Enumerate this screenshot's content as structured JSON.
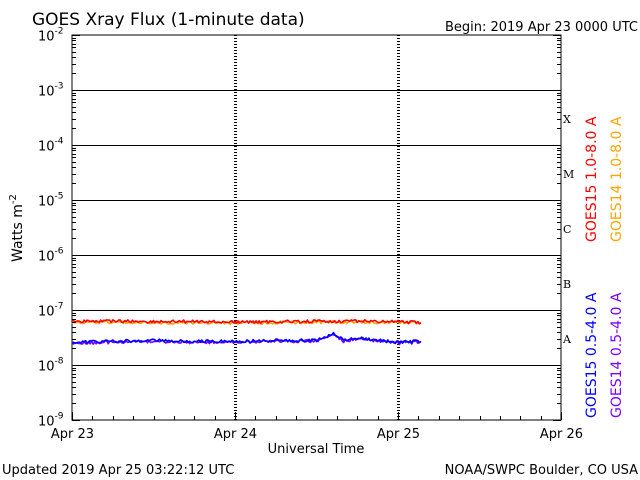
{
  "header": {
    "title": "GOES Xray Flux (1-minute data)",
    "begin": "Begin:  2019 Apr 23 0000 UTC"
  },
  "footer": {
    "updated": "Updated 2019 Apr 25 03:22:12 UTC",
    "source": "NOAA/SWPC Boulder, CO USA"
  },
  "colors": {
    "goes15_long": "#ff0000",
    "goes14_long": "#ffa500",
    "goes15_short": "#0000ff",
    "goes14_short": "#7b00ff"
  },
  "chart_data": {
    "type": "line",
    "title": "GOES Xray Flux (1-minute data)",
    "xlabel": "Universal Time",
    "ylabel": "Watts m",
    "ylabel_sup": "-2",
    "yscale": "log",
    "ylim": [
      1e-09,
      0.01
    ],
    "y_ticks": [
      {
        "value": 0.01,
        "base": "10",
        "exp": "-2"
      },
      {
        "value": 0.001,
        "base": "10",
        "exp": "-3"
      },
      {
        "value": 0.0001,
        "base": "10",
        "exp": "-4"
      },
      {
        "value": 1e-05,
        "base": "10",
        "exp": "-5"
      },
      {
        "value": 1e-06,
        "base": "10",
        "exp": "-6"
      },
      {
        "value": 1e-07,
        "base": "10",
        "exp": "-7"
      },
      {
        "value": 1e-08,
        "base": "10",
        "exp": "-8"
      },
      {
        "value": 1e-09,
        "base": "10",
        "exp": "-9"
      }
    ],
    "xlim": [
      "2019-04-23 00:00",
      "2019-04-26 00:00"
    ],
    "x_ticks": [
      {
        "value": "2019-04-23 00:00",
        "label": "Apr 23"
      },
      {
        "value": "2019-04-24 00:00",
        "label": "Apr 24"
      },
      {
        "value": "2019-04-25 00:00",
        "label": "Apr 25"
      },
      {
        "value": "2019-04-26 00:00",
        "label": "Apr 26"
      }
    ],
    "flare_classes": [
      {
        "label": "X",
        "value": 0.0003
      },
      {
        "label": "M",
        "value": 3e-05
      },
      {
        "label": "C",
        "value": 3e-06
      },
      {
        "label": "B",
        "value": 3e-07
      },
      {
        "label": "A",
        "value": 3e-08
      }
    ],
    "gridlines_y": [
      0.001,
      0.0001,
      1e-05,
      1e-06,
      1e-07,
      1e-08
    ],
    "grid": true,
    "legend_position": "right",
    "series": [
      {
        "name": "GOES15 1.0-8.0 A",
        "color": "#ff0000",
        "x": [
          "2019-04-23 00:00",
          "2019-04-23 06:00",
          "2019-04-23 12:00",
          "2019-04-23 18:00",
          "2019-04-24 00:00",
          "2019-04-24 06:00",
          "2019-04-24 12:00",
          "2019-04-24 18:00",
          "2019-04-25 00:00",
          "2019-04-25 03:22"
        ],
        "values": [
          6.2e-08,
          6.3e-08,
          6.1e-08,
          6.2e-08,
          6e-08,
          6.1e-08,
          6.2e-08,
          6.3e-08,
          6.1e-08,
          5.9e-08
        ]
      },
      {
        "name": "GOES14 1.0-8.0 A",
        "color": "#ffa500",
        "x": [
          "2019-04-23 00:00",
          "2019-04-23 06:00",
          "2019-04-23 12:00",
          "2019-04-23 18:00",
          "2019-04-24 00:00",
          "2019-04-24 06:00",
          "2019-04-24 12:00",
          "2019-04-24 18:00",
          "2019-04-25 00:00",
          "2019-04-25 03:22"
        ],
        "values": [
          5.9e-08,
          6e-08,
          5.8e-08,
          5.9e-08,
          5.8e-08,
          5.9e-08,
          6e-08,
          6e-08,
          5.9e-08,
          5.8e-08
        ]
      },
      {
        "name": "GOES15 0.5-4.0 A",
        "color": "#0000ff",
        "x": [
          "2019-04-23 00:00",
          "2019-04-23 06:00",
          "2019-04-23 12:00",
          "2019-04-23 18:00",
          "2019-04-24 00:00",
          "2019-04-24 06:00",
          "2019-04-24 12:00",
          "2019-04-24 14:30",
          "2019-04-24 16:00",
          "2019-04-24 18:00",
          "2019-04-24 21:00",
          "2019-04-25 00:00",
          "2019-04-25 03:22"
        ],
        "values": [
          2.6e-08,
          2.7e-08,
          2.8e-08,
          2.7e-08,
          2.7e-08,
          2.8e-08,
          2.8e-08,
          3.8e-08,
          2.8e-08,
          3.1e-08,
          2.8e-08,
          2.6e-08,
          2.7e-08
        ]
      },
      {
        "name": "GOES14 0.5-4.0 A",
        "color": "#7b00ff",
        "x": [
          "2019-04-23 00:00",
          "2019-04-23 06:00",
          "2019-04-23 12:00",
          "2019-04-23 18:00",
          "2019-04-24 00:00",
          "2019-04-24 06:00",
          "2019-04-24 12:00",
          "2019-04-24 14:30",
          "2019-04-24 16:00",
          "2019-04-24 18:00",
          "2019-04-24 21:00",
          "2019-04-25 00:00",
          "2019-04-25 03:22"
        ],
        "values": [
          2.5e-08,
          2.6e-08,
          2.7e-08,
          2.6e-08,
          2.6e-08,
          2.7e-08,
          2.7e-08,
          3.6e-08,
          2.7e-08,
          3e-08,
          2.7e-08,
          2.5e-08,
          2.6e-08
        ]
      }
    ]
  }
}
